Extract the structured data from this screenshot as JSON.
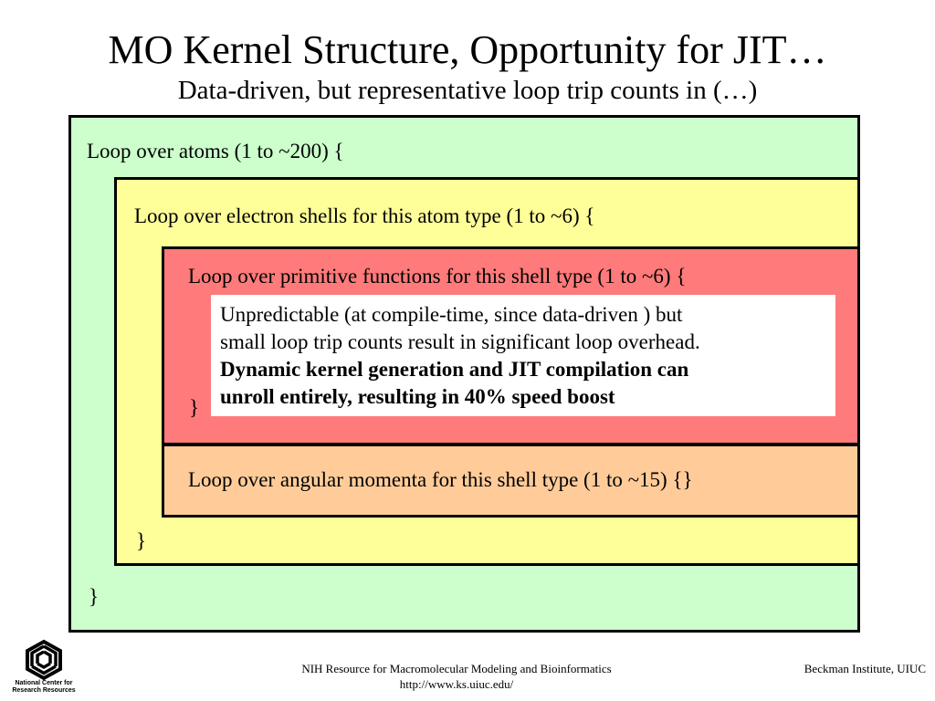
{
  "slide": {
    "title": "MO Kernel Structure, Opportunity for JIT…",
    "subtitle": "Data-driven, but representative loop trip counts in (…)"
  },
  "diagram": {
    "atoms": {
      "label": "Loop over atoms (1 to ~200) {",
      "close": "}",
      "color": "#ccffcc"
    },
    "shells": {
      "label": "Loop over electron shells for this atom type (1 to ~6) {",
      "close": "}",
      "color": "#ffff99"
    },
    "primitives": {
      "label": "Loop over primitive functions for this shell type (1 to ~6) {",
      "close": "}",
      "color": "#ff7a7a"
    },
    "angular": {
      "label": "Loop over angular momenta for this shell type (1 to ~15) {}",
      "color": "#ffcc99"
    },
    "note": {
      "line1": "Unpredictable (at compile-time, since data-driven ) but",
      "line2": "small loop trip counts result in significant loop overhead.",
      "line3": "Dynamic kernel generation and JIT compilation can",
      "line4": "unroll entirely, resulting in 40% speed boost"
    }
  },
  "footer": {
    "center_line1": "NIH Resource for Macromolecular Modeling and Bioinformatics",
    "center_line2": "http://www.ks.uiuc.edu/",
    "right": "Beckman Institute, UIUC",
    "logo_caption_line1": "National Center for",
    "logo_caption_line2": "Research Resources",
    "logo_icon": "ncrr-logo-icon"
  }
}
